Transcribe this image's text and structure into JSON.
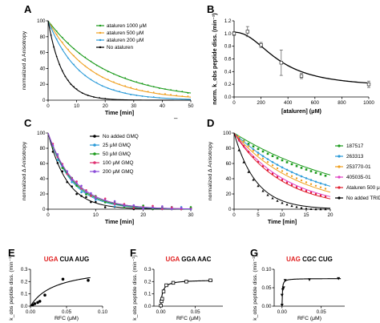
{
  "chart_data": [
    {
      "panel": "A",
      "type": "line",
      "xlabel": "Time [min]",
      "ylabel": "normalized Δ Anisotropy",
      "xlim": [
        0,
        50
      ],
      "ylim": [
        0,
        100
      ],
      "xticks": [
        "0",
        "10",
        "20",
        "30",
        "40",
        "50"
      ],
      "yticks": [
        "0",
        "20",
        "40",
        "60",
        "80",
        "100"
      ],
      "legend_position": "top-right",
      "series": [
        {
          "name": "ataluren 1000 μM",
          "color": "#1a9a1a",
          "k": 0.048,
          "x": [
            1,
            3,
            5,
            7,
            9,
            11,
            13,
            15,
            17,
            19,
            21,
            23,
            25,
            27,
            29,
            31,
            33,
            35,
            37,
            39,
            41,
            43,
            45,
            47,
            49
          ],
          "y": [
            95,
            87,
            79,
            72,
            65,
            59,
            54,
            49,
            44,
            40,
            36,
            33,
            30,
            28,
            25,
            23,
            21,
            19,
            17,
            15,
            14,
            13,
            12,
            11,
            9
          ]
        },
        {
          "name": "ataluren 500 μM",
          "color": "#f0a020",
          "k": 0.065,
          "x": [
            1,
            3,
            5,
            7,
            9,
            11,
            13,
            15,
            17,
            19,
            21,
            23,
            25,
            27,
            29,
            31,
            33,
            35,
            37,
            39,
            41,
            43,
            45,
            47,
            49
          ],
          "y": [
            94,
            83,
            73,
            64,
            56,
            49,
            43,
            38,
            33,
            29,
            26,
            23,
            20,
            18,
            16,
            14,
            12,
            11,
            10,
            8,
            8,
            7,
            6,
            5,
            5
          ]
        },
        {
          "name": "ataluren 200 μM",
          "color": "#2a9ad8",
          "k": 0.09,
          "x": [
            1,
            3,
            5,
            7,
            9,
            11,
            13,
            15,
            17,
            19,
            21,
            23,
            25,
            27,
            29,
            31,
            33,
            35,
            37,
            39
          ],
          "y": [
            91,
            77,
            64,
            53,
            45,
            37,
            31,
            26,
            22,
            18,
            15,
            13,
            11,
            9,
            7,
            6,
            5,
            4,
            4,
            3
          ]
        },
        {
          "name": "No ataluren",
          "color": "#000000",
          "k": 0.2,
          "x": [
            1,
            2,
            3,
            4,
            5,
            6,
            7,
            8,
            9,
            10,
            12,
            14,
            16,
            18,
            20
          ],
          "y": [
            82,
            67,
            55,
            45,
            37,
            30,
            25,
            20,
            17,
            14,
            9,
            6,
            4,
            3,
            2
          ]
        }
      ]
    },
    {
      "panel": "B",
      "type": "line",
      "xlabel": "[ataluren] (μM)",
      "ylabel": "norm. k_obs peptide diss. (min⁻¹)",
      "xlim": [
        0,
        1000
      ],
      "ylim": [
        0,
        1.2
      ],
      "xticks": [
        "0",
        "200",
        "400",
        "600",
        "800",
        "1000"
      ],
      "yticks": [
        "0.0",
        "0.2",
        "0.4",
        "0.6",
        "0.8",
        "1.0",
        "1.2"
      ],
      "points": [
        {
          "x": 0,
          "y": 1.0,
          "err": 0.03
        },
        {
          "x": 100,
          "y": 1.03,
          "err": 0.08
        },
        {
          "x": 200,
          "y": 0.82,
          "err": 0.04
        },
        {
          "x": 350,
          "y": 0.54,
          "err": 0.2
        },
        {
          "x": 500,
          "y": 0.33,
          "err": 0.04
        },
        {
          "x": 1000,
          "y": 0.2,
          "err": 0.05
        }
      ]
    },
    {
      "panel": "C",
      "type": "line",
      "xlabel": "Time [min]",
      "ylabel": "normalized Δ Anisotropy",
      "xlim": [
        0,
        30
      ],
      "ylim": [
        0,
        100
      ],
      "xticks": [
        "0",
        "10",
        "20",
        "30"
      ],
      "yticks": [
        "0",
        "20",
        "40",
        "60",
        "80",
        "100"
      ],
      "legend_position": "top-right",
      "series": [
        {
          "name": "No added GMQ",
          "color": "#000000",
          "k": 0.25
        },
        {
          "name": "25 μM GMQ",
          "color": "#2a9ad8",
          "k": 0.2
        },
        {
          "name": "50 μM GMQ",
          "color": "#1a9a1a",
          "k": 0.19
        },
        {
          "name": "100 μM GMQ",
          "color": "#e03070",
          "k": 0.18
        },
        {
          "name": "200 μM GMQ",
          "color": "#8a4ad8",
          "k": 0.18
        }
      ],
      "points_x": [
        1,
        2,
        3,
        4,
        5,
        6,
        7,
        8,
        9,
        10,
        12,
        14,
        16,
        18,
        20,
        22,
        24,
        26,
        28,
        30
      ]
    },
    {
      "panel": "D",
      "type": "line",
      "xlabel": "Time [min]",
      "ylabel": "normalized Δ Anisotropy",
      "xlim": [
        0,
        20
      ],
      "ylim": [
        0,
        100
      ],
      "xticks": [
        "0",
        "5",
        "10",
        "15",
        "20"
      ],
      "yticks": [
        "0",
        "20",
        "40",
        "60",
        "80",
        "100"
      ],
      "legend_position": "right",
      "series": [
        {
          "name": "187517",
          "color": "#1a9a1a",
          "k": 0.04
        },
        {
          "name": "263313",
          "color": "#2a9ad8",
          "k": 0.06
        },
        {
          "name": "253770-01",
          "color": "#f0a020",
          "k": 0.075
        },
        {
          "name": "405035-01",
          "color": "#e040c0",
          "k": 0.09
        },
        {
          "name": "Ataluren 500 μM",
          "color": "#e02030",
          "k": 0.1
        },
        {
          "name": "No added TRID",
          "color": "#000000",
          "k": 0.22
        }
      ],
      "points_x": [
        1,
        2,
        3,
        4,
        5,
        6,
        7,
        8,
        9,
        10,
        11,
        12,
        13,
        14,
        15,
        16,
        17,
        18,
        19
      ]
    },
    {
      "panel": "E",
      "type": "scatter",
      "title_stop": "UGA",
      "title_rest": "CUA AUG",
      "xlabel": "RFC (μM)",
      "ylabel": "k_obs peptide diss. (min⁻¹)",
      "xlim": [
        0,
        0.1
      ],
      "ylim": [
        0,
        0.3
      ],
      "xticks": [
        "0.00",
        "0.05",
        "0.10"
      ],
      "yticks": [
        "0.0",
        "0.1",
        "0.2",
        "0.3"
      ],
      "x": [
        0.003,
        0.006,
        0.01,
        0.013,
        0.02,
        0.045,
        0.08
      ],
      "y": [
        0.01,
        0.02,
        0.03,
        0.04,
        0.09,
        0.22,
        0.21
      ]
    },
    {
      "panel": "F",
      "type": "scatter",
      "title_stop": "UGA",
      "title_rest": "GGA AAC",
      "xlabel": "RFC (μM)",
      "ylabel": "k_obs peptide diss. (min⁻¹)",
      "xlim": [
        -0.01,
        0.09
      ],
      "ylim": [
        0,
        0.3
      ],
      "xticks": [
        "0.00",
        "0.05"
      ],
      "yticks": [
        "0.0",
        "0.1",
        "0.2",
        "0.3"
      ],
      "x": [
        0.0,
        0.001,
        0.002,
        0.004,
        0.008,
        0.018,
        0.037,
        0.072
      ],
      "y": [
        0.005,
        0.04,
        0.06,
        0.12,
        0.17,
        0.19,
        0.2,
        0.21
      ]
    },
    {
      "panel": "G",
      "type": "scatter",
      "title_stop": "UAG",
      "title_rest": "CGC CUG",
      "xlabel": "RFC (μM)",
      "ylabel": "k_obs peptide diss. (min⁻¹)",
      "xlim": [
        -0.01,
        0.08
      ],
      "ylim": [
        0,
        0.1
      ],
      "xticks": [
        "0.00",
        "0.05"
      ],
      "yticks": [
        "0.00",
        "0.05",
        "0.10"
      ],
      "x": [
        0.0,
        0.0,
        0.001,
        0.002,
        0.004,
        0.035,
        0.072
      ],
      "y": [
        0.003,
        0.03,
        0.045,
        0.05,
        0.07,
        0.072,
        0.075
      ]
    }
  ],
  "labels": {
    "A": "A",
    "B": "B",
    "C": "C",
    "D": "D",
    "E": "E",
    "F": "F",
    "G": "G",
    "dash": "–"
  },
  "colors": {
    "stop_codon": "#e02020"
  }
}
